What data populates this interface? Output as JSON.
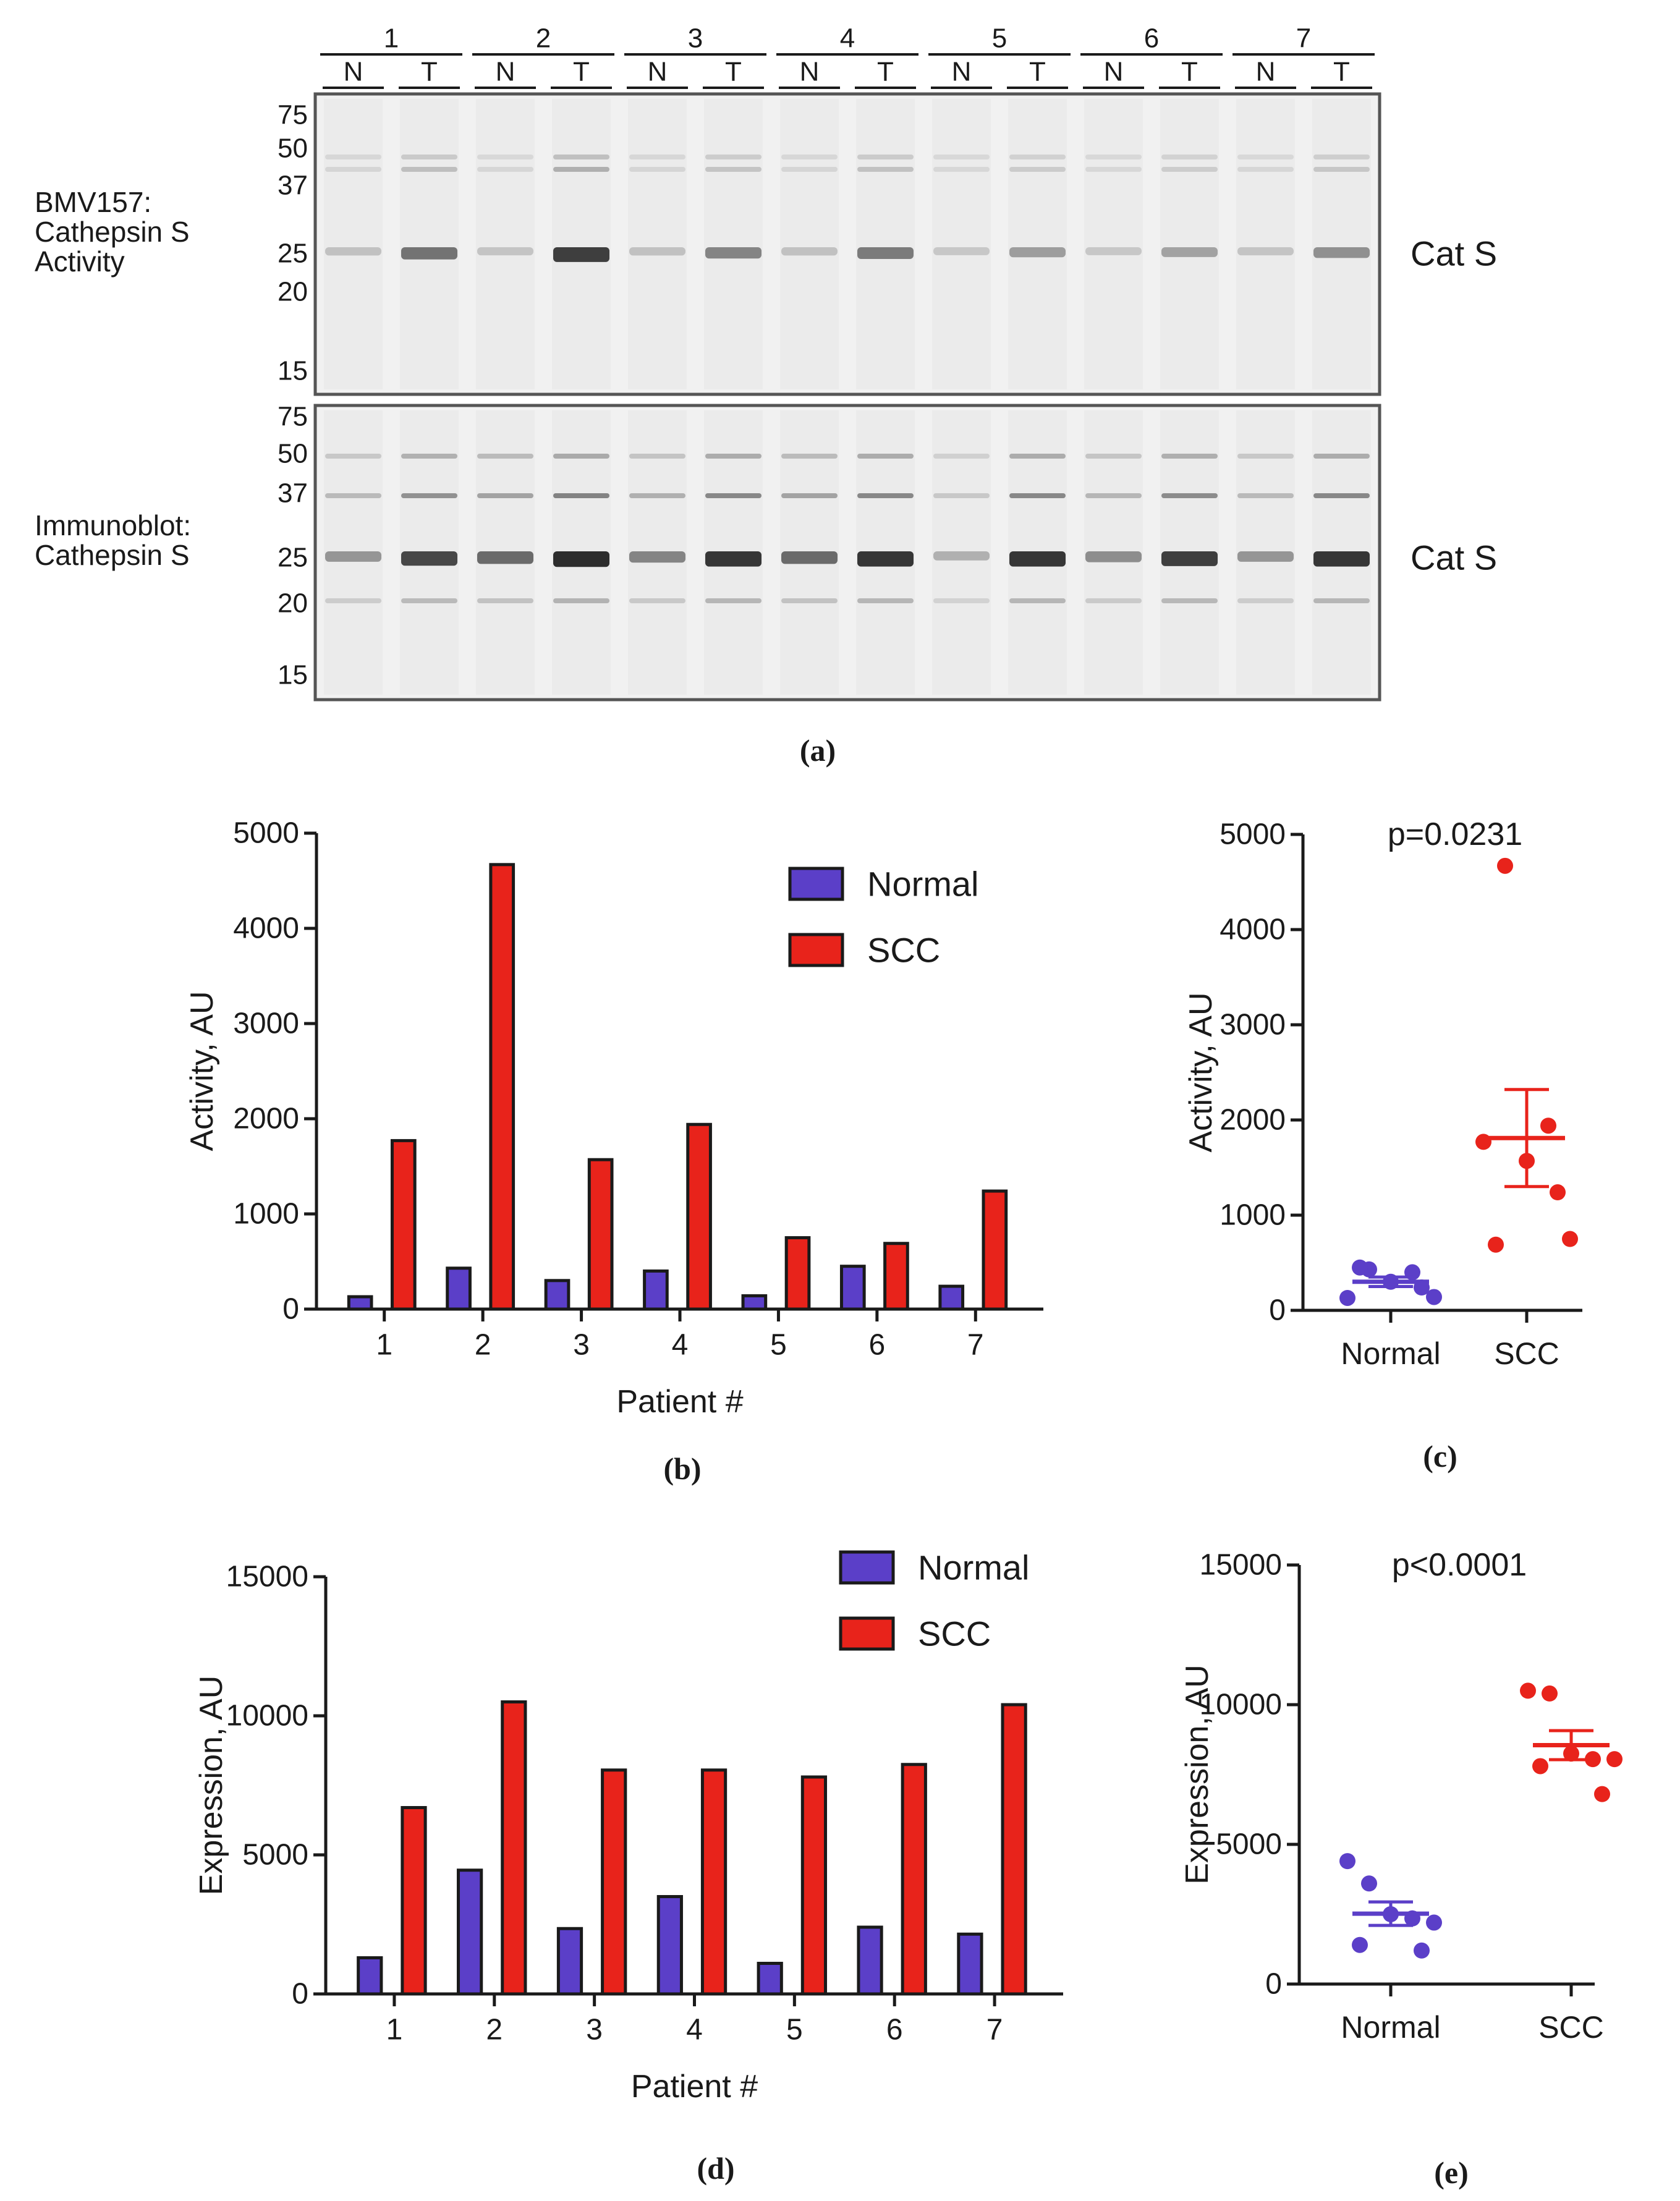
{
  "panel_letters": {
    "a": "(a)",
    "b": "(b)",
    "c": "(c)",
    "d": "(d)",
    "e": "(e)"
  },
  "blot": {
    "patients": [
      "1",
      "2",
      "3",
      "4",
      "5",
      "6",
      "7"
    ],
    "lanes": [
      "N",
      "T"
    ],
    "mw_markers": [
      "75",
      "50",
      "37",
      "25",
      "20",
      "15"
    ],
    "top_panel": {
      "row_label": [
        "BMV157:",
        "Cathepsin S",
        "Activity"
      ],
      "band_label": "Cat S",
      "band_intensity": [
        0.1,
        0.55,
        0.08,
        0.85,
        0.1,
        0.45,
        0.1,
        0.5,
        0.06,
        0.3,
        0.06,
        0.28,
        0.08,
        0.38
      ]
    },
    "bottom_panel": {
      "row_label": [
        "Immunoblot:",
        "Cathepsin S"
      ],
      "band_label": "Cat S",
      "band_intensity": [
        0.35,
        0.8,
        0.6,
        0.95,
        0.45,
        0.9,
        0.6,
        0.9,
        0.2,
        0.9,
        0.4,
        0.85,
        0.35,
        0.9
      ]
    },
    "colors": {
      "background": "#f1f1f1",
      "band": "#1e1e1e",
      "border": "#555555"
    }
  },
  "chart_data": [
    {
      "panel": "b",
      "type": "bar",
      "categories": [
        "1",
        "2",
        "3",
        "4",
        "5",
        "6",
        "7"
      ],
      "series": [
        {
          "name": "Normal",
          "color": "#5b3fc8",
          "values": [
            130,
            430,
            300,
            400,
            140,
            450,
            240
          ]
        },
        {
          "name": "SCC",
          "color": "#e8231b",
          "values": [
            1770,
            4670,
            1570,
            1940,
            750,
            690,
            1240
          ]
        }
      ],
      "xlabel": "Patient #",
      "ylabel": "Activity, AU",
      "ylim": [
        0,
        5000
      ],
      "yticks": [
        "0",
        "1000",
        "2000",
        "3000",
        "4000",
        "5000"
      ],
      "legend": "top-right"
    },
    {
      "panel": "c",
      "type": "scatter",
      "categories": [
        "Normal",
        "SCC"
      ],
      "series": [
        {
          "name": "Normal",
          "color": "#5b3fc8",
          "values": [
            130,
            430,
            300,
            400,
            140,
            450,
            240
          ],
          "mean": 300,
          "sem": 50
        },
        {
          "name": "SCC",
          "color": "#e8231b",
          "values": [
            1770,
            4670,
            1570,
            1940,
            750,
            690,
            1240
          ],
          "mean": 1810,
          "sem": 510
        }
      ],
      "ylabel": "Activity, AU",
      "ylim": [
        0,
        5000
      ],
      "yticks": [
        "0",
        "1000",
        "2000",
        "3000",
        "4000",
        "5000"
      ],
      "annotation": "p=0.0231"
    },
    {
      "panel": "d",
      "type": "bar",
      "categories": [
        "1",
        "2",
        "3",
        "4",
        "5",
        "6",
        "7"
      ],
      "series": [
        {
          "name": "Normal",
          "color": "#5b3fc8",
          "values": [
            1300,
            4450,
            2350,
            3500,
            1100,
            2400,
            2150
          ]
        },
        {
          "name": "SCC",
          "color": "#e8231b",
          "values": [
            6700,
            10500,
            8050,
            8050,
            7800,
            8250,
            10400
          ]
        }
      ],
      "xlabel": "Patient #",
      "ylabel": "Expression, AU",
      "ylim": [
        0,
        15000
      ],
      "yticks": [
        "0",
        "5000",
        "10000",
        "15000"
      ],
      "legend": "top-right"
    },
    {
      "panel": "e",
      "type": "scatter",
      "categories": [
        "Normal",
        "SCC"
      ],
      "series": [
        {
          "name": "Normal",
          "color": "#5b3fc8",
          "values": [
            4400,
            3600,
            2500,
            2350,
            2200,
            1400,
            1200
          ],
          "mean": 2520,
          "sem": 420
        },
        {
          "name": "SCC",
          "color": "#e8231b",
          "values": [
            10500,
            10400,
            8250,
            8050,
            8050,
            7800,
            6800
          ],
          "mean": 8550,
          "sem": 520
        }
      ],
      "ylabel": "Expression, AU",
      "ylim": [
        0,
        15000
      ],
      "yticks": [
        "0",
        "5000",
        "10000",
        "15000"
      ],
      "annotation": "p<0.0001"
    }
  ]
}
